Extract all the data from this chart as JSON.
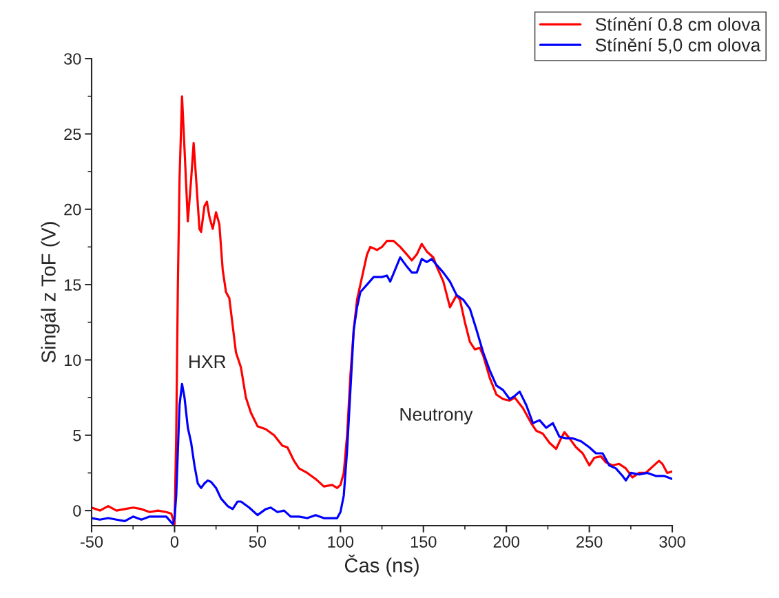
{
  "chart_data": {
    "type": "line",
    "xlabel": "Čas (ns)",
    "ylabel": "Singál z ToF (V)",
    "xlim": [
      -50,
      300
    ],
    "xticks": [
      -50,
      0,
      50,
      100,
      150,
      200,
      250,
      300
    ],
    "ylim": [
      -1,
      30
    ],
    "yticks": [
      0,
      5,
      10,
      15,
      20,
      25,
      30
    ],
    "grid": false,
    "legend": "top right",
    "marker": "none",
    "line_style": "solid",
    "annotations": [
      "HXR",
      "Neutrony"
    ],
    "series": [
      {
        "name": "Stínění 0.8 cm olova",
        "color": "#ff0000",
        "x": [
          -50,
          -45,
          -40,
          -35,
          -30,
          -25,
          -20,
          -15,
          -10,
          -5,
          -2,
          0,
          1,
          2,
          3,
          4.5,
          6,
          8,
          10,
          11.5,
          13,
          15,
          16,
          18,
          19.5,
          21,
          23,
          25,
          27,
          29,
          31,
          33,
          35,
          37,
          40,
          43,
          46,
          50,
          55,
          60,
          65,
          68,
          72,
          75,
          80,
          85,
          90,
          95,
          98,
          100,
          102,
          104,
          106,
          108,
          110,
          113,
          116,
          118,
          122,
          125,
          128,
          132,
          136,
          140,
          143,
          146,
          149,
          152,
          156,
          158,
          162,
          166,
          170,
          172,
          175,
          178,
          181,
          184,
          186,
          190,
          194,
          198,
          202,
          205,
          210,
          215,
          218,
          222,
          226,
          230,
          233,
          235,
          238,
          242,
          246,
          250,
          253,
          257,
          260,
          264,
          268,
          272,
          276,
          280,
          284,
          288,
          292,
          294,
          297,
          300
        ],
        "values": [
          0.2,
          0.0,
          0.3,
          0.0,
          0.1,
          0.2,
          0.1,
          -0.1,
          0.0,
          -0.1,
          -0.2,
          -0.9,
          5,
          15,
          22,
          27.5,
          24,
          19.2,
          22,
          24.4,
          22,
          18.7,
          18.5,
          20.2,
          20.5,
          19.5,
          18.7,
          19.8,
          19,
          16,
          14.5,
          14.1,
          12.3,
          10.5,
          9.5,
          7.5,
          6.5,
          5.6,
          5.4,
          5,
          4.3,
          4.2,
          3.3,
          2.8,
          2.5,
          2.1,
          1.6,
          1.7,
          1.5,
          1.7,
          2.5,
          5,
          9,
          12,
          14,
          15.5,
          17,
          17.5,
          17.3,
          17.5,
          17.9,
          17.9,
          17.5,
          17.0,
          16.6,
          17.0,
          17.7,
          17.2,
          16.8,
          16.2,
          15.2,
          13.5,
          14.3,
          14.0,
          12.5,
          11.2,
          10.7,
          10.8,
          10.3,
          8.8,
          7.7,
          7.4,
          7.3,
          7.5,
          6.8,
          5.8,
          5.3,
          5.1,
          4.5,
          4.1,
          4.8,
          5.2,
          4.8,
          4.2,
          3.8,
          3.0,
          3.5,
          3.6,
          3.2,
          3.0,
          3.1,
          2.8,
          2.2,
          2.5,
          2.5,
          2.9,
          3.3,
          3.1,
          2.5,
          2.6
        ]
      },
      {
        "name": "Stínění 5,0 cm olova",
        "color": "#0000ff",
        "x": [
          -50,
          -45,
          -40,
          -35,
          -30,
          -25,
          -20,
          -15,
          -10,
          -5,
          -1,
          0,
          1,
          2,
          3,
          4.5,
          6,
          8,
          10,
          12,
          14,
          16,
          18,
          20,
          22,
          25,
          28,
          32,
          35,
          38,
          40,
          45,
          50,
          55,
          58,
          62,
          66,
          70,
          75,
          80,
          85,
          90,
          95,
          98,
          100,
          102,
          104,
          106,
          108,
          110,
          112,
          116,
          120,
          125,
          128,
          130,
          133,
          136,
          140,
          143,
          146,
          149,
          152,
          155,
          158,
          162,
          166,
          170,
          174,
          178,
          182,
          186,
          190,
          194,
          198,
          202,
          205,
          208,
          212,
          216,
          220,
          224,
          228,
          232,
          236,
          240,
          245,
          250,
          254,
          258,
          262,
          266,
          270,
          272,
          275,
          280,
          285,
          290,
          295,
          300
        ],
        "values": [
          -0.5,
          -0.6,
          -0.5,
          -0.6,
          -0.7,
          -0.4,
          -0.6,
          -0.4,
          -0.4,
          -0.4,
          -0.9,
          -0.5,
          1,
          4,
          7,
          8.4,
          7.5,
          5.5,
          4.5,
          3,
          1.8,
          1.5,
          1.8,
          2,
          1.9,
          1.5,
          0.8,
          0.3,
          0.1,
          0.6,
          0.6,
          0.2,
          -0.3,
          0.1,
          0.2,
          -0.1,
          0.0,
          -0.4,
          -0.4,
          -0.5,
          -0.3,
          -0.5,
          -0.5,
          -0.5,
          -0.1,
          1,
          4,
          8,
          12,
          13.5,
          14.5,
          15.0,
          15.5,
          15.5,
          15.6,
          15.2,
          16.0,
          16.8,
          16.2,
          15.8,
          15.8,
          16.7,
          16.5,
          16.7,
          16.3,
          15.8,
          15.2,
          14.3,
          14.0,
          13.4,
          12.0,
          10.5,
          9.3,
          8.3,
          8.0,
          7.4,
          7.6,
          7.9,
          7.0,
          5.8,
          6.0,
          5.5,
          5.8,
          4.9,
          4.8,
          4.8,
          4.6,
          4.2,
          3.8,
          3.8,
          3.0,
          2.8,
          2.3,
          2.0,
          2.5,
          2.4,
          2.5,
          2.3,
          2.3,
          2.1
        ]
      }
    ]
  }
}
